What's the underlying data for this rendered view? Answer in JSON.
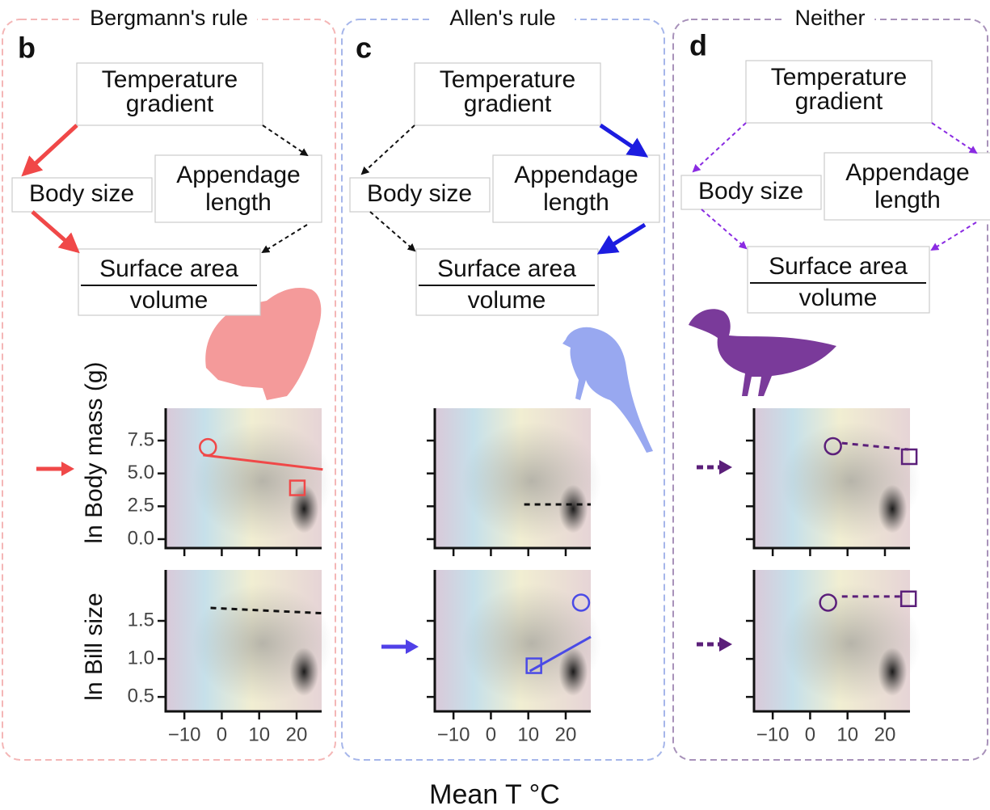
{
  "panels": [
    {
      "letter": "b",
      "title": "Bergmann's rule",
      "color": "#f04848",
      "nodes": {
        "temperature": [
          "Temperature",
          "gradient"
        ],
        "body": [
          "Body size"
        ],
        "appendage": [
          "Appendage",
          "length"
        ],
        "surface": [
          "Surface area",
          "volume"
        ]
      }
    },
    {
      "letter": "c",
      "title": "Allen's rule",
      "color": "#1c1ce0",
      "nodes": {
        "temperature": [
          "Temperature",
          "gradient"
        ],
        "body": [
          "Body size"
        ],
        "appendage": [
          "Appendage",
          "length"
        ],
        "surface": [
          "Surface area",
          "volume"
        ]
      }
    },
    {
      "letter": "d",
      "title": "Neither",
      "color": "#8a2be2",
      "nodes": {
        "temperature": [
          "Temperature",
          "gradient"
        ],
        "body": [
          "Body size"
        ],
        "appendage": [
          "Appendage",
          "length"
        ],
        "surface": [
          "Surface area",
          "volume"
        ]
      }
    }
  ],
  "y_labels": [
    "ln Body mass (g)",
    "ln Bill size"
  ],
  "x_label": "Mean T °C",
  "chart_data": [
    {
      "type": "scatter",
      "color": "#f04848",
      "dashed": false,
      "trend": {
        "x": [
          -5,
          27
        ],
        "values": [
          6.4,
          5.3
        ]
      },
      "points": {
        "x": [
          -3.7,
          20.2
        ],
        "values": [
          7.0,
          3.9
        ]
      },
      "markers": [
        "circle",
        "square"
      ],
      "xlim": [
        -15,
        26.7
      ],
      "ylim": [
        -0.68,
        9.96
      ],
      "xticks": [
        -10,
        0,
        10,
        20
      ],
      "yticks": [
        {
          "value": 0,
          "label": "0.0"
        },
        2.5,
        {
          "value": 5,
          "label": "5.0"
        },
        7.5
      ],
      "show_ytick_labels": true,
      "show_xtick_labels": false
    },
    {
      "type": "scatter",
      "color": "#111111",
      "dashed": true,
      "trend": {
        "x": [
          -3,
          27
        ],
        "values": [
          1.67,
          1.6
        ]
      },
      "xlim": [
        -15,
        26.7
      ],
      "ylim": [
        0.31,
        2.17
      ],
      "xticks": [
        {
          "value": -10,
          "label": "−10"
        },
        0,
        10,
        20
      ],
      "yticks": [
        {
          "value": 0.5,
          "label": "0.5"
        },
        {
          "value": 1,
          "label": "1.0"
        },
        1.5
      ],
      "show_ytick_labels": true,
      "show_xtick_labels": true
    },
    {
      "type": "scatter",
      "color": "#111111",
      "dashed": true,
      "trend": {
        "x": [
          8.9,
          26.7
        ],
        "values": [
          2.64,
          2.64
        ]
      },
      "xlim": [
        -15,
        26.7
      ],
      "ylim": [
        -0.68,
        9.96
      ],
      "xticks": [
        -10,
        0,
        10,
        20
      ],
      "yticks": [
        0,
        2.5,
        5,
        7.5
      ],
      "show_ytick_labels": false,
      "show_xtick_labels": false
    },
    {
      "type": "scatter",
      "color": "#4a4ae6",
      "dashed": false,
      "trend": {
        "x": [
          10.4,
          26.7
        ],
        "values": [
          0.84,
          1.29
        ]
      },
      "points": {
        "x": [
          24.1,
          11.5
        ],
        "values": [
          1.74,
          0.91
        ]
      },
      "markers": [
        "circle",
        "square"
      ],
      "xlim": [
        -15,
        26.7
      ],
      "ylim": [
        0.31,
        2.17
      ],
      "xticks": [
        {
          "value": -10,
          "label": "−10"
        },
        0,
        10,
        20
      ],
      "yticks": [
        0.5,
        1,
        1.5
      ],
      "show_ytick_labels": false,
      "show_xtick_labels": true
    },
    {
      "type": "scatter",
      "color": "#5b1f7a",
      "dashed": true,
      "trend": {
        "x": [
          8.5,
          26.3
        ],
        "values": [
          7.31,
          6.82
        ]
      },
      "points": {
        "x": [
          6.1,
          26.5
        ],
        "values": [
          7.07,
          6.27
        ]
      },
      "markers": [
        "circle",
        "square"
      ],
      "xlim": [
        -15,
        26.7
      ],
      "ylim": [
        -0.68,
        9.96
      ],
      "xticks": [
        -10,
        0,
        10,
        20
      ],
      "yticks": [
        0,
        2.5,
        5,
        7.5
      ],
      "show_ytick_labels": false,
      "show_xtick_labels": false
    },
    {
      "type": "scatter",
      "color": "#5b1f7a",
      "dashed": true,
      "trend": {
        "x": [
          8.5,
          24.8
        ],
        "values": [
          1.82,
          1.82
        ]
      },
      "points": {
        "x": [
          4.8,
          26.3
        ],
        "values": [
          1.74,
          1.79
        ]
      },
      "markers": [
        "circle",
        "square"
      ],
      "xlim": [
        -15,
        26.7
      ],
      "ylim": [
        0.31,
        2.17
      ],
      "xticks": [
        {
          "value": -10,
          "label": "−10"
        },
        0,
        10,
        20
      ],
      "yticks": [
        0.5,
        1,
        1.5
      ],
      "show_ytick_labels": false,
      "show_xtick_labels": true
    }
  ]
}
